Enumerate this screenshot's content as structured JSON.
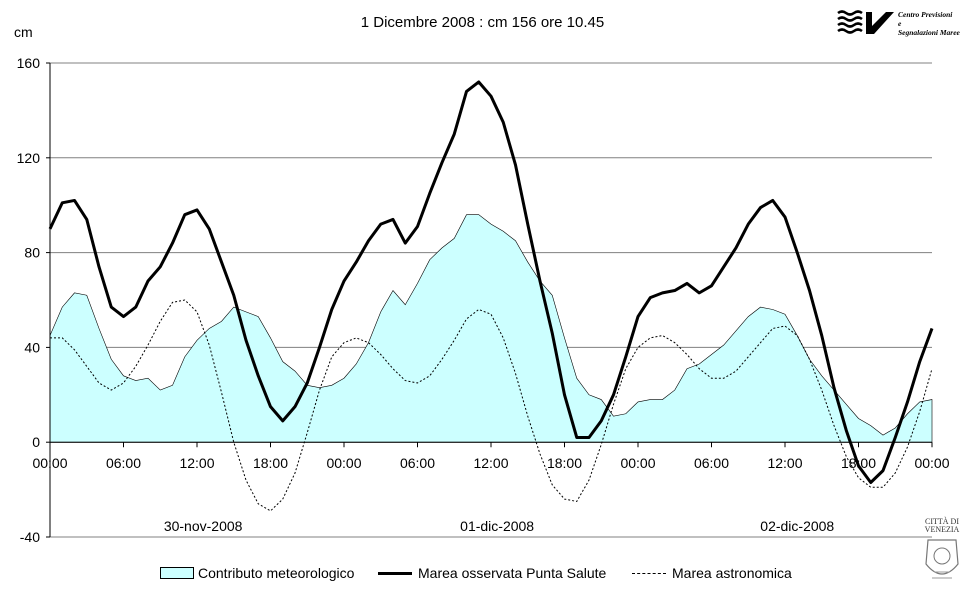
{
  "page": {
    "title": "1 Dicembre 2008 : cm 156 ore 10.45",
    "logo_text": [
      "Centro Previsioni",
      "e",
      "Segnalazioni Maree"
    ],
    "seal_text": [
      "CITTÀ DI",
      "VENEZIA"
    ]
  },
  "chart_data": {
    "type": "line",
    "ylabel": "cm",
    "ylim": [
      -40,
      160
    ],
    "yticks": [
      -40,
      0,
      40,
      80,
      120,
      160
    ],
    "xlim_hours": [
      0,
      72
    ],
    "xticks": [
      "00:00",
      "06:00",
      "12:00",
      "18:00",
      "00:00",
      "06:00",
      "12:00",
      "18:00",
      "00:00",
      "06:00",
      "12:00",
      "18:00",
      "00:00"
    ],
    "day_labels": [
      {
        "label": "30-nov-2008",
        "center_hour": 12.5
      },
      {
        "label": "01-dic-2008",
        "center_hour": 36.5
      },
      {
        "label": "02-dic-2008",
        "center_hour": 61.0
      }
    ],
    "grid": "horizontal",
    "legend_position": "bottom",
    "series": [
      {
        "name": "Contributo meteorologico",
        "kind": "area",
        "color": "#ccffff",
        "x": [
          0,
          1,
          2,
          3,
          4,
          5,
          6,
          7,
          8,
          9,
          10,
          11,
          12,
          13,
          14,
          15,
          16,
          17,
          18,
          19,
          20,
          21,
          22,
          23,
          24,
          25,
          26,
          27,
          28,
          29,
          30,
          31,
          32,
          33,
          34,
          35,
          36,
          37,
          38,
          39,
          40,
          41,
          42,
          43,
          44,
          45,
          46,
          47,
          48,
          49,
          50,
          51,
          52,
          53,
          54,
          55,
          56,
          57,
          58,
          59,
          60,
          61,
          62,
          63,
          64,
          65,
          66,
          67,
          68,
          69,
          70,
          71,
          72
        ],
        "y": [
          45,
          57,
          63,
          62,
          48,
          35,
          28,
          26,
          27,
          22,
          24,
          36,
          43,
          48,
          51,
          57,
          55,
          53,
          44,
          34,
          30,
          24,
          23,
          24,
          27,
          33,
          42,
          55,
          64,
          58,
          67,
          77,
          82,
          86,
          96,
          96,
          92,
          89,
          85,
          76,
          68,
          62,
          44,
          27,
          20,
          18,
          11,
          12,
          17,
          18,
          18,
          22,
          31,
          33,
          37,
          41,
          47,
          53,
          57,
          56,
          54,
          45,
          35,
          28,
          22,
          16,
          10,
          7,
          3,
          6,
          12,
          17,
          18
        ]
      },
      {
        "name": "Marea osservata Punta Salute",
        "kind": "line",
        "color": "#000000",
        "x": [
          0,
          1,
          2,
          3,
          4,
          5,
          6,
          7,
          8,
          9,
          10,
          11,
          12,
          13,
          14,
          15,
          16,
          17,
          18,
          19,
          20,
          21,
          22,
          23,
          24,
          25,
          26,
          27,
          28,
          29,
          30,
          31,
          32,
          33,
          34,
          35,
          36,
          37,
          38,
          39,
          40,
          41,
          42,
          43,
          44,
          45,
          46,
          47,
          48,
          49,
          50,
          51,
          52,
          53,
          54,
          55,
          56,
          57,
          58,
          59,
          60,
          61,
          62,
          63,
          64,
          65,
          66,
          67,
          68,
          69,
          70,
          71,
          72
        ],
        "y": [
          90,
          101,
          102,
          94,
          74,
          57,
          53,
          57,
          68,
          74,
          84,
          96,
          98,
          90,
          76,
          62,
          43,
          28,
          15,
          9,
          15,
          25,
          40,
          56,
          68,
          76,
          85,
          92,
          94,
          84,
          91,
          105,
          118,
          130,
          148,
          152,
          146,
          135,
          117,
          92,
          68,
          46,
          20,
          2,
          2,
          9,
          20,
          36,
          53,
          61,
          63,
          64,
          67,
          63,
          66,
          74,
          82,
          92,
          99,
          102,
          95,
          80,
          64,
          45,
          23,
          5,
          -10,
          -17,
          -12,
          2,
          17,
          34,
          48
        ]
      },
      {
        "name": "Marea astronomica",
        "kind": "dashed",
        "color": "#000000",
        "x": [
          0,
          1,
          2,
          3,
          4,
          5,
          6,
          7,
          8,
          9,
          10,
          11,
          12,
          13,
          14,
          15,
          16,
          17,
          18,
          19,
          20,
          21,
          22,
          23,
          24,
          25,
          26,
          27,
          28,
          29,
          30,
          31,
          32,
          33,
          34,
          35,
          36,
          37,
          38,
          39,
          40,
          41,
          42,
          43,
          44,
          45,
          46,
          47,
          48,
          49,
          50,
          51,
          52,
          53,
          54,
          55,
          56,
          57,
          58,
          59,
          60,
          61,
          62,
          63,
          64,
          65,
          66,
          67,
          68,
          69,
          70,
          71,
          72
        ],
        "y": [
          44,
          44,
          39,
          32,
          25,
          22,
          25,
          32,
          41,
          51,
          59,
          60,
          55,
          41,
          21,
          0,
          -16,
          -26,
          -29,
          -24,
          -13,
          4,
          22,
          36,
          42,
          44,
          42,
          37,
          31,
          26,
          25,
          28,
          35,
          43,
          52,
          56,
          54,
          44,
          29,
          11,
          -5,
          -18,
          -24,
          -25,
          -16,
          -1,
          16,
          31,
          40,
          44,
          45,
          42,
          37,
          31,
          27,
          27,
          30,
          36,
          42,
          48,
          49,
          45,
          35,
          22,
          7,
          -6,
          -15,
          -19,
          -19,
          -13,
          -2,
          13,
          31
        ]
      }
    ]
  }
}
